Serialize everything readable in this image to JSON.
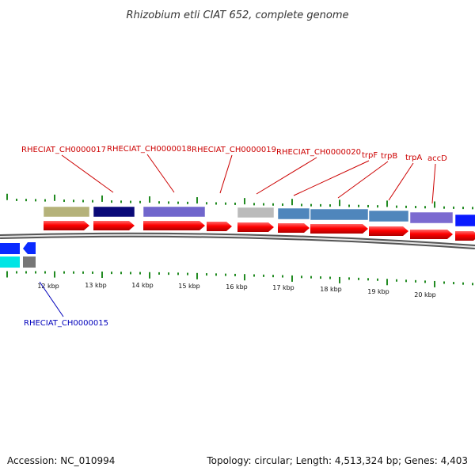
{
  "title": "Rhizobium etli CIAT 652, complete genome",
  "footer": {
    "accession": "Accession: NC_010994",
    "stats": "Topology: circular; Length: 4,513,324 bp; Genes: 4,403"
  },
  "colors": {
    "cds_red": "#ff0000",
    "tick_green": "#228b22",
    "label_top": "#cc0000",
    "label_bottom": "#0000bb",
    "backbone": "#888888"
  },
  "kbp_labels": [
    "12 kbp",
    "13 kbp",
    "14 kbp",
    "15 kbp",
    "16 kbp",
    "17 kbp",
    "18 kbp",
    "19 kbp",
    "20 kbp"
  ],
  "top_gene_labels": [
    "RHECIAT_CH0000017",
    "RHECIAT_CH0000018",
    "RHECIAT_CH0000019",
    "RHECIAT_CH0000020",
    "trpF",
    "trpB",
    "trpA",
    "accD"
  ],
  "bottom_gene_labels": [
    "RHECIAT_CH0000015"
  ],
  "cog_bar_colors": [
    "#b5b27a",
    "#0a0a78",
    "#7066cc",
    "#bbbbbb",
    "#4f86bc",
    "#4f86bc",
    "#4f86bc",
    "#7b6ad0",
    "#0a1aff"
  ],
  "lower_bar_colors": [
    "#0a2aff",
    "#00e5e5",
    "#777777"
  ]
}
